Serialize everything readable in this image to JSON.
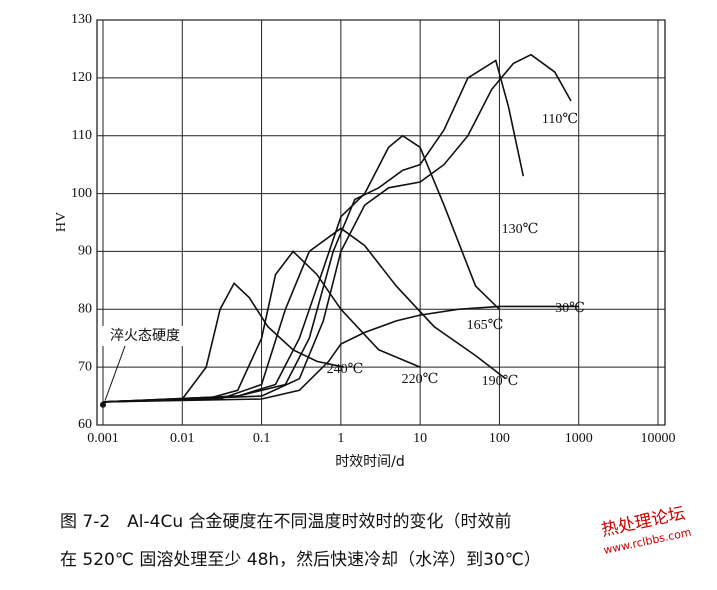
{
  "chart_data": {
    "type": "line",
    "y_label": "HV",
    "x_label": "时效时间/d",
    "xscale": "log",
    "xlim": [
      0.001,
      10000
    ],
    "xticks": [
      0.001,
      0.01,
      0.1,
      1,
      10,
      100,
      1000,
      10000
    ],
    "ylim": [
      60,
      130
    ],
    "yticks": [
      60,
      70,
      80,
      90,
      100,
      110,
      120,
      130
    ],
    "grid": true,
    "annotation": {
      "text": "淬火态硬度",
      "x": 0.001,
      "y": 63.5
    },
    "series": [
      {
        "name": "240℃",
        "color": "#111111",
        "x": [
          0.001,
          0.01,
          0.02,
          0.03,
          0.045,
          0.07,
          0.12,
          0.25,
          0.5,
          1.1
        ],
        "values": [
          64,
          64.5,
          70,
          80,
          84.5,
          82,
          77,
          73,
          71,
          70
        ]
      },
      {
        "name": "220℃",
        "color": "#111111",
        "x": [
          0.001,
          0.02,
          0.05,
          0.1,
          0.15,
          0.25,
          0.5,
          1,
          3,
          10
        ],
        "values": [
          64,
          64.5,
          66,
          75,
          86,
          90,
          86,
          80,
          73,
          70
        ]
      },
      {
        "name": "190℃",
        "color": "#111111",
        "x": [
          0.001,
          0.03,
          0.1,
          0.2,
          0.4,
          1,
          2,
          5,
          15,
          50,
          120
        ],
        "values": [
          64,
          64.5,
          67,
          80,
          90,
          94,
          91,
          84,
          77,
          72,
          68
        ]
      },
      {
        "name": "165℃",
        "color": "#111111",
        "x": [
          0.001,
          0.05,
          0.15,
          0.3,
          0.6,
          1,
          2,
          4,
          6,
          10,
          20,
          50,
          100
        ],
        "values": [
          64,
          65,
          67,
          75,
          87,
          96,
          100,
          108,
          110,
          108,
          98,
          84,
          80
        ]
      },
      {
        "name": "130℃",
        "color": "#111111",
        "x": [
          0.001,
          0.05,
          0.2,
          0.4,
          0.8,
          1.5,
          3,
          6,
          10,
          20,
          40,
          90,
          130,
          200
        ],
        "values": [
          64,
          65,
          67,
          75,
          90,
          99,
          101,
          104,
          105,
          111,
          120,
          123,
          115,
          103
        ]
      },
      {
        "name": "110℃",
        "color": "#111111",
        "x": [
          0.001,
          0.1,
          0.3,
          0.6,
          1,
          2,
          4,
          10,
          20,
          40,
          80,
          150,
          250,
          500,
          800
        ],
        "values": [
          64,
          65,
          68,
          78,
          90,
          98,
          101,
          102,
          105,
          110,
          118,
          122.5,
          124,
          121,
          116
        ]
      },
      {
        "name": "30℃",
        "color": "#111111",
        "x": [
          0.001,
          0.1,
          0.3,
          0.7,
          1,
          2,
          5,
          10,
          30,
          100,
          1000
        ],
        "values": [
          64,
          64.5,
          66,
          71,
          74,
          76,
          78,
          79,
          80,
          80.5,
          80.5
        ]
      }
    ]
  },
  "caption": {
    "line1": "图 7-2　Al-4Cu 合金硬度在不同温度时效时的变化（时效前",
    "line2": "在 520℃ 固溶处理至少 48h，然后快速冷却（水淬）到30℃）"
  },
  "watermark": {
    "title": "热处理论坛",
    "url": "www.rclbbs.com"
  }
}
